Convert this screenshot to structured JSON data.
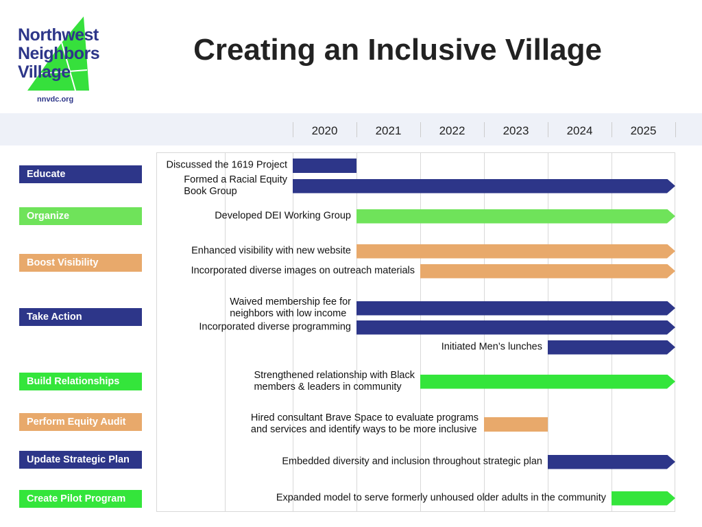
{
  "logo": {
    "name_lines": [
      "Northwest",
      "Neighbors",
      "Village"
    ],
    "url": "nnvdc.org"
  },
  "chart_data": {
    "type": "gantt",
    "title": "Creating an Inclusive Village",
    "xlim": [
      2018,
      2026
    ],
    "xticks": [
      {
        "value": 2020.5,
        "label": "2020"
      },
      {
        "value": 2021.5,
        "label": "2021"
      },
      {
        "value": 2022.5,
        "label": "2022"
      },
      {
        "value": 2023.5,
        "label": "2023"
      },
      {
        "value": 2024.5,
        "label": "2024"
      },
      {
        "value": 2025.5,
        "label": "2025"
      }
    ],
    "groups": [
      {
        "name": "Educate",
        "color": "#2d3689",
        "tasks": [
          {
            "label": "Discussed the 1619 Project",
            "start": 2020,
            "end": 2021,
            "arrow": false
          },
          {
            "label": "Formed a Racial Equity\nBook Group",
            "start": 2020,
            "end": 2026,
            "arrow": true
          }
        ]
      },
      {
        "name": "Organize",
        "color": "#6fe35a",
        "tasks": [
          {
            "label": "Developed DEI Working Group",
            "start": 2021,
            "end": 2026,
            "arrow": true
          }
        ]
      },
      {
        "name": "Boost Visibility",
        "color": "#e8a96b",
        "tasks": [
          {
            "label": "Enhanced visibility with new website",
            "start": 2021,
            "end": 2026,
            "arrow": true
          },
          {
            "label": "Incorporated diverse images on outreach materials",
            "start": 2022,
            "end": 2026,
            "arrow": true
          }
        ]
      },
      {
        "name": "Take Action",
        "color": "#2d3689",
        "tasks": [
          {
            "label": "Waived membership fee for\nneighbors with low income",
            "start": 2021,
            "end": 2026,
            "arrow": true
          },
          {
            "label": "Incorporated diverse programming",
            "start": 2021,
            "end": 2026,
            "arrow": true
          },
          {
            "label": "Initiated Men’s lunches",
            "start": 2024,
            "end": 2026,
            "arrow": true
          }
        ]
      },
      {
        "name": "Build Relationships",
        "color": "#34e53b",
        "tasks": [
          {
            "label": "Strengthened relationship with Black\nmembers & leaders in community",
            "start": 2022,
            "end": 2026,
            "arrow": true
          }
        ]
      },
      {
        "name": "Perform Equity Audit",
        "color": "#e8a96b",
        "tasks": [
          {
            "label": "Hired consultant Brave Space to evaluate programs\nand services and identify ways to be more inclusive",
            "start": 2023,
            "end": 2024,
            "arrow": false
          }
        ]
      },
      {
        "name": "Update Strategic Plan",
        "color": "#2d3689",
        "tasks": [
          {
            "label": "Embedded diversity and inclusion throughout strategic plan",
            "start": 2024,
            "end": 2026,
            "arrow": true
          }
        ]
      },
      {
        "name": "Create Pilot Program",
        "color": "#34e53b",
        "tasks": [
          {
            "label": "Expanded model to serve formerly unhoused older adults in the community",
            "start": 2025,
            "end": 2026,
            "arrow": true
          }
        ]
      }
    ]
  }
}
